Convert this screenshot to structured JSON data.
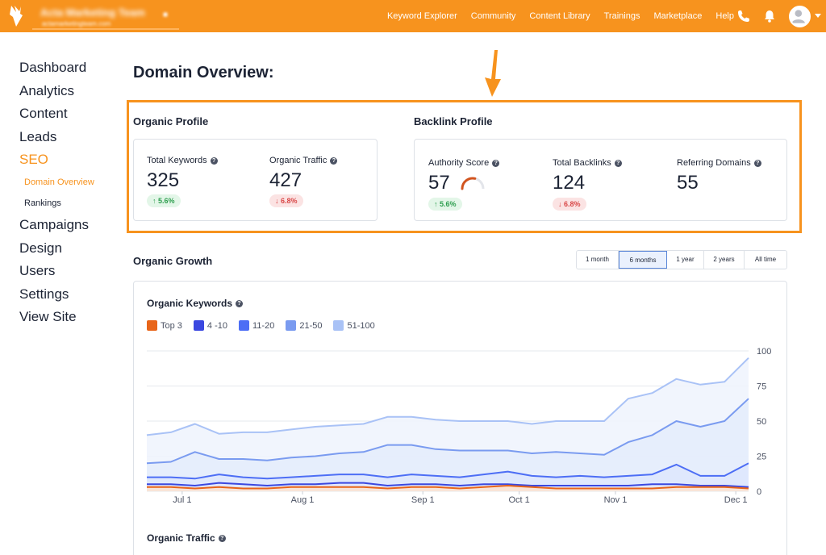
{
  "topbar": {
    "account_name": "Acta Marketing Team",
    "account_url": "actamarketingteam.com",
    "account_extra": "■",
    "nav": [
      "Keyword Explorer",
      "Community",
      "Content Library",
      "Trainings",
      "Marketplace",
      "Help"
    ],
    "icons": [
      "phone-icon",
      "bell-icon",
      "avatar-icon",
      "chevron-down-icon"
    ],
    "brand_color": "#f7931e"
  },
  "sidebar": {
    "items": [
      {
        "label": "Dashboard"
      },
      {
        "label": "Analytics"
      },
      {
        "label": "Content"
      },
      {
        "label": "Leads"
      },
      {
        "label": "SEO",
        "active": true
      },
      {
        "label": "Domain Overview",
        "sub": true,
        "active": true
      },
      {
        "label": "Rankings",
        "sub": true
      },
      {
        "label": "Campaigns"
      },
      {
        "label": "Design"
      },
      {
        "label": "Users"
      },
      {
        "label": "Settings"
      },
      {
        "label": "View Site"
      }
    ]
  },
  "page": {
    "title": "Domain Overview:"
  },
  "organic_profile": {
    "title": "Organic Profile",
    "total_keywords": {
      "label": "Total Keywords",
      "value": "325",
      "change": "5.6%",
      "direction": "up"
    },
    "organic_traffic": {
      "label": "Organic Traffic",
      "value": "427",
      "change": "6.8%",
      "direction": "down"
    }
  },
  "backlink_profile": {
    "title": "Backlink Profile",
    "authority_score": {
      "label": "Authority Score",
      "value": "57",
      "change": "5.6%",
      "direction": "up",
      "gauge_fraction": 0.57
    },
    "total_backlinks": {
      "label": "Total Backlinks",
      "value": "124",
      "change": "6.8%",
      "direction": "down"
    },
    "referring_domains": {
      "label": "Referring Domains",
      "value": "55"
    }
  },
  "organic_growth": {
    "title": "Organic Growth",
    "time_ranges": [
      "1 month",
      "6 months",
      "1 year",
      "2 years",
      "All time"
    ],
    "selected_range": "6 months"
  },
  "keywords_chart": {
    "title": "Organic Keywords"
  },
  "traffic_chart": {
    "title": "Organic Traffic"
  },
  "chart_data": {
    "type": "area",
    "title": "Organic Keywords",
    "x_ticks": [
      "Jul 1",
      "Aug 1",
      "Sep 1",
      "Oct 1",
      "Nov 1",
      "Dec 1"
    ],
    "x": [
      "Jun 22",
      "Jul 1",
      "Jul 8",
      "Jul 15",
      "Jul 22",
      "Jul 29",
      "Aug 5",
      "Aug 12",
      "Aug 19",
      "Aug 26",
      "Sep 2",
      "Sep 9",
      "Sep 16",
      "Sep 23",
      "Sep 30",
      "Oct 7",
      "Oct 14",
      "Oct 21",
      "Oct 28",
      "Nov 4",
      "Nov 11",
      "Nov 18",
      "Nov 25",
      "Dec 2",
      "Dec 9",
      "Dec 16"
    ],
    "ylim": [
      0,
      100
    ],
    "y_ticks": [
      0,
      25,
      50,
      75,
      100
    ],
    "grid": true,
    "legend_position": "top-left",
    "series": [
      {
        "name": "Top 3",
        "color": "#e8651a",
        "values": [
          3,
          3,
          2,
          3,
          2,
          2,
          3,
          3,
          3,
          3,
          2,
          3,
          3,
          2,
          3,
          4,
          3,
          2,
          2,
          2,
          2,
          2,
          3,
          3,
          3,
          2
        ]
      },
      {
        "name": "4 -10",
        "color": "#3b48e0",
        "values": [
          5,
          5,
          4,
          6,
          5,
          4,
          5,
          5,
          6,
          6,
          4,
          5,
          5,
          4,
          5,
          5,
          4,
          4,
          4,
          4,
          4,
          5,
          5,
          4,
          4,
          3
        ]
      },
      {
        "name": "11-20",
        "color": "#4d6ef5",
        "values": [
          10,
          10,
          9,
          12,
          10,
          9,
          10,
          11,
          12,
          12,
          10,
          12,
          11,
          10,
          12,
          14,
          11,
          10,
          11,
          10,
          11,
          12,
          19,
          11,
          11,
          20
        ]
      },
      {
        "name": "21-50",
        "color": "#7a9bf0",
        "values": [
          20,
          21,
          28,
          23,
          23,
          22,
          24,
          25,
          27,
          28,
          33,
          33,
          30,
          29,
          29,
          29,
          27,
          28,
          27,
          26,
          35,
          40,
          50,
          46,
          50,
          66
        ]
      },
      {
        "name": "51-100",
        "color": "#a9c2f6",
        "values": [
          40,
          42,
          48,
          41,
          42,
          42,
          44,
          46,
          47,
          48,
          53,
          53,
          51,
          50,
          50,
          50,
          48,
          50,
          50,
          50,
          66,
          70,
          80,
          76,
          78,
          95
        ]
      }
    ]
  }
}
